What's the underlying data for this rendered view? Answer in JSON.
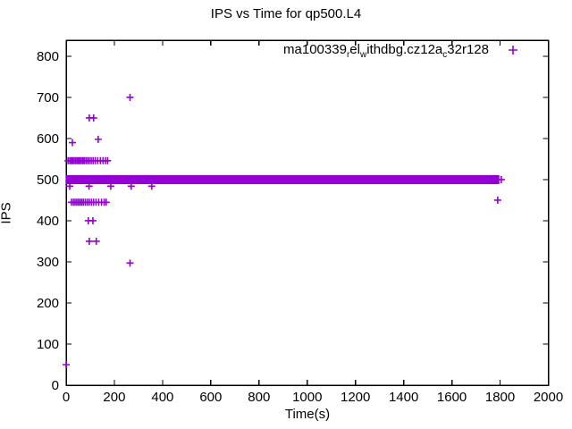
{
  "chart_data": {
    "type": "scatter",
    "title": "IPS vs Time for qp500.L4",
    "xlabel": "Time(s)",
    "ylabel": "IPS",
    "xlim": [
      0,
      2000
    ],
    "ylim": [
      0,
      839
    ],
    "xticks": [
      0,
      200,
      400,
      600,
      800,
      1000,
      1200,
      1400,
      1600,
      1800,
      2000
    ],
    "yticks": [
      0,
      100,
      200,
      300,
      400,
      500,
      600,
      700,
      800
    ],
    "grid": false,
    "legend_position": "top-right-inside",
    "marker": "plus",
    "marker_color": "#9400d3",
    "series": [
      {
        "name": "ma100339_rel_withdbg.cz12a_c32r128",
        "display_segments": [
          {
            "t": "ma100339"
          },
          {
            "s": "r"
          },
          {
            "t": "el"
          },
          {
            "s": "w"
          },
          {
            "t": "ithdbg.cz12a"
          },
          {
            "s": "c"
          },
          {
            "t": "32r128"
          }
        ],
        "band": {
          "x_start": 0,
          "x_end": 1797,
          "ips_low": 489,
          "ips_high": 511
        },
        "points": [
          [
            0,
            50
          ],
          [
            26,
            590
          ],
          [
            133,
            598
          ],
          [
            96,
            650
          ],
          [
            114,
            650
          ],
          [
            265,
            700
          ],
          [
            265,
            297
          ],
          [
            92,
            400
          ],
          [
            111,
            400
          ],
          [
            96,
            350
          ],
          [
            125,
            350
          ],
          [
            1790,
            450
          ],
          [
            1805,
            500
          ],
          [
            8,
            546
          ],
          [
            15,
            546
          ],
          [
            21,
            546
          ],
          [
            27,
            546
          ],
          [
            33,
            546
          ],
          [
            39,
            546
          ],
          [
            45,
            546
          ],
          [
            51,
            546
          ],
          [
            57,
            546
          ],
          [
            63,
            546
          ],
          [
            69,
            546
          ],
          [
            75,
            546
          ],
          [
            82,
            546
          ],
          [
            89,
            546
          ],
          [
            96,
            546
          ],
          [
            104,
            546
          ],
          [
            112,
            546
          ],
          [
            121,
            546
          ],
          [
            131,
            546
          ],
          [
            142,
            546
          ],
          [
            153,
            546
          ],
          [
            163,
            546
          ],
          [
            172,
            546
          ],
          [
            22,
            445
          ],
          [
            30,
            445
          ],
          [
            37,
            445
          ],
          [
            44,
            445
          ],
          [
            51,
            445
          ],
          [
            58,
            445
          ],
          [
            65,
            445
          ],
          [
            72,
            445
          ],
          [
            80,
            445
          ],
          [
            88,
            445
          ],
          [
            96,
            445
          ],
          [
            105,
            445
          ],
          [
            114,
            445
          ],
          [
            124,
            445
          ],
          [
            135,
            445
          ],
          [
            147,
            445
          ],
          [
            158,
            445
          ],
          [
            166,
            445
          ],
          [
            15,
            484
          ],
          [
            95,
            484
          ],
          [
            185,
            484
          ],
          [
            270,
            484
          ],
          [
            355,
            484
          ]
        ]
      }
    ]
  }
}
